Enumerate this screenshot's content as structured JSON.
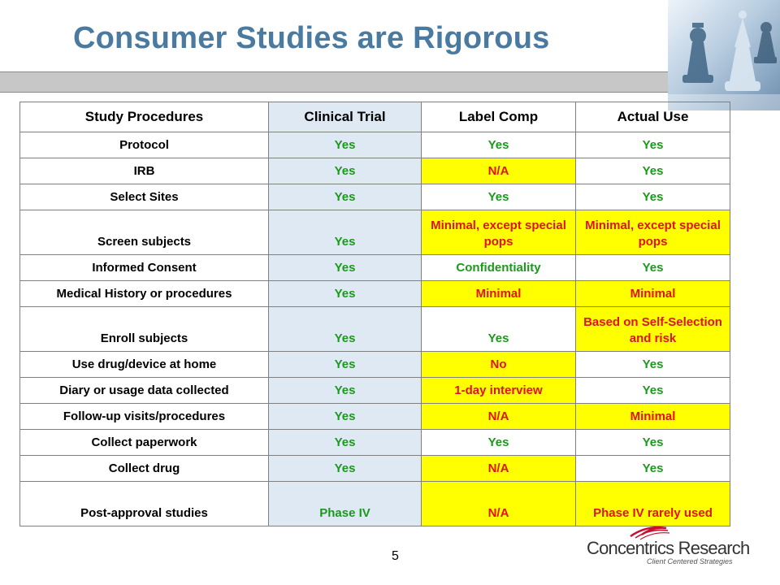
{
  "slide": {
    "title": "Consumer Studies are Rigorous",
    "page_number": "5"
  },
  "logo": {
    "name": "Concentrics Research",
    "tagline": "Client Centered Strategies",
    "accent_color": "#c8102e"
  },
  "table": {
    "headers": [
      "Study Procedures",
      "Clinical Trial",
      "Label Comp",
      "Actual Use"
    ],
    "rows": [
      [
        "Protocol",
        "Yes",
        "Yes",
        "Yes"
      ],
      [
        "IRB",
        "Yes",
        "N/A",
        "Yes"
      ],
      [
        "Select Sites",
        "Yes",
        "Yes",
        "Yes"
      ],
      [
        "Screen subjects",
        "Yes",
        "Minimal, except special pops",
        "Minimal, except special pops"
      ],
      [
        "Informed Consent",
        "Yes",
        "Confidentiality",
        "Yes"
      ],
      [
        "Medical History or procedures",
        "Yes",
        "Minimal",
        "Minimal"
      ],
      [
        "Enroll subjects",
        "Yes",
        "Yes",
        "Based on Self-Selection and risk"
      ],
      [
        "Use drug/device at home",
        "Yes",
        "No",
        "Yes"
      ],
      [
        "Diary or usage data collected",
        "Yes",
        "1-day interview",
        "Yes"
      ],
      [
        "Follow-up visits/procedures",
        "Yes",
        "N/A",
        "Minimal"
      ],
      [
        "Collect paperwork",
        "Yes",
        "Yes",
        "Yes"
      ],
      [
        "Collect drug",
        "Yes",
        "N/A",
        "Yes"
      ],
      [
        "Post-approval studies",
        "Phase IV",
        "N/A",
        "Phase IV rarely used"
      ]
    ]
  },
  "colors": {
    "title": "#4a7aa0",
    "clinical_column": "#dfe9f3",
    "highlight": "#ffff00",
    "green_text": "#1a9a1a",
    "red_text": "#e0121a"
  }
}
